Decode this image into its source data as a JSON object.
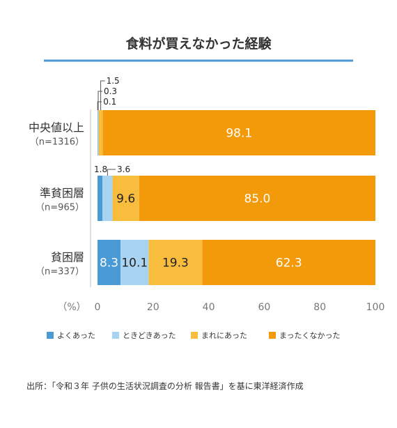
{
  "chart_data": {
    "type": "bar",
    "orientation": "horizontal",
    "stacked": true,
    "title": "食料が買えなかった経験",
    "axis_unit_label": "（%）",
    "xlim": [
      0,
      100
    ],
    "x_ticks": [
      "0",
      "20",
      "40",
      "60",
      "80",
      "100"
    ],
    "categories": [
      {
        "name": "中央値以上",
        "n": "（n=1316）"
      },
      {
        "name": "準貧困層",
        "n": "（n=965）"
      },
      {
        "name": "貧困層",
        "n": "（n=337）"
      }
    ],
    "series": [
      {
        "name": "よくあった",
        "color": "#4a9ad6",
        "values": [
          0.1,
          1.8,
          8.3
        ],
        "labels": [
          "0.1",
          "1.8",
          "8.3"
        ],
        "label_color": "#ffffff"
      },
      {
        "name": "ときどきあった",
        "color": "#a8d4f2",
        "values": [
          0.3,
          3.6,
          10.1
        ],
        "labels": [
          "0.3",
          "3.6",
          "10.1"
        ],
        "label_color": "#222222"
      },
      {
        "name": "まれにあった",
        "color": "#f9bd3e",
        "values": [
          1.5,
          9.6,
          19.3
        ],
        "labels": [
          "1.5",
          "9.6",
          "19.3"
        ],
        "label_color": "#222222"
      },
      {
        "name": "まったくなかった",
        "color": "#f39a0a",
        "values": [
          98.1,
          85.0,
          62.3
        ],
        "labels": [
          "98.1",
          "85.0",
          "62.3"
        ],
        "label_color": "#ffffff"
      }
    ],
    "grid": false,
    "legend_position": "bottom"
  },
  "source": "出所：「令和３年 子供の生活状況調査の分析 報告書」を基に東洋経済作成",
  "colors": {
    "title_rule": "#4a9ad6",
    "axis": "#cccccc"
  }
}
